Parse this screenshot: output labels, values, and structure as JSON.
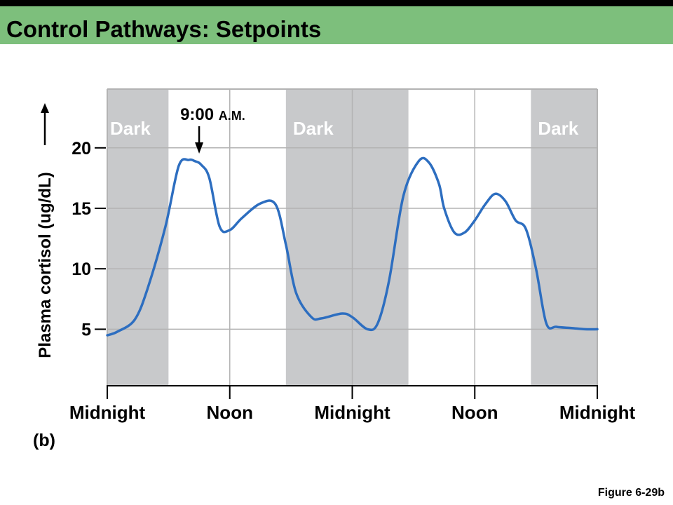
{
  "header": {
    "title": "Control Pathways: Setpoints"
  },
  "panel_label": "(b)",
  "figure_ref": "Figure 6-29b",
  "colors": {
    "title_bar": "#7dbf7c",
    "dark_band": "#c8c9cb",
    "curve": "#2d6ec0",
    "grid": "#b3b3b3"
  },
  "chart_data": {
    "type": "line",
    "title": "",
    "xlabel": "",
    "ylabel": "Plasma cortisol (ug/dL)",
    "x_unit": "hours",
    "xlim": [
      0,
      48
    ],
    "ylim": [
      0,
      24
    ],
    "x_ticks": [
      {
        "value": 0,
        "label": "Midnight"
      },
      {
        "value": 12,
        "label": "Noon"
      },
      {
        "value": 24,
        "label": "Midnight"
      },
      {
        "value": 36,
        "label": "Noon"
      },
      {
        "value": 48,
        "label": "Midnight"
      }
    ],
    "y_ticks": [
      5,
      10,
      15,
      20
    ],
    "grid": true,
    "dark_periods": [
      {
        "label": "Dark",
        "start": 0,
        "end": 6
      },
      {
        "label": "Dark",
        "start": 17.5,
        "end": 29.5
      },
      {
        "label": "Dark",
        "start": 41.5,
        "end": 48
      }
    ],
    "annotation": {
      "time_label": "9:00",
      "suffix": "A.M.",
      "x": 9,
      "y": 19
    },
    "series": [
      {
        "x": [
          0,
          1,
          2.7,
          4,
          5.7,
          7,
          8,
          8.6,
          9.2,
          10,
          11,
          12,
          13.2,
          15,
          16.5,
          17.5,
          18.5,
          20,
          21,
          23,
          24,
          25.5,
          26.5,
          27.6,
          29,
          30.5,
          31.5,
          32.5,
          33,
          34,
          35,
          36,
          37,
          38,
          39,
          40,
          41,
          42,
          43,
          44,
          45.5,
          46.8,
          48
        ],
        "values": [
          4.5,
          4.8,
          5.8,
          8.5,
          13.5,
          18.5,
          19,
          18.9,
          18.6,
          17.5,
          13.5,
          13.2,
          14.2,
          15.4,
          15.3,
          12,
          8,
          6,
          5.9,
          6.3,
          6,
          5,
          5.5,
          9,
          16,
          18.9,
          18.8,
          17,
          15,
          13,
          13,
          14,
          15.3,
          16.2,
          15.6,
          14,
          13.3,
          10,
          5.5,
          5.2,
          5.1,
          5.0,
          5.0
        ]
      }
    ]
  }
}
